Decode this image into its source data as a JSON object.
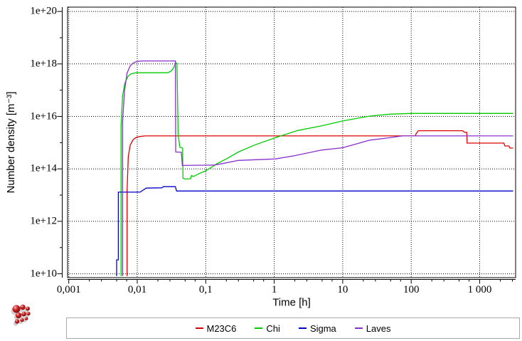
{
  "window": {
    "background": "#ffffff"
  },
  "chart_data": {
    "type": "line",
    "title": "",
    "xlabel": "Time [h]",
    "ylabel": "Number density [m⁻³]",
    "x_scale": "log",
    "y_scale": "log",
    "xlim": [
      0.001,
      3500
    ],
    "ylim": [
      10000000000.0,
      1e+20
    ],
    "grid": "dotted",
    "legend_position": "bottom",
    "x_ticks": {
      "values": [
        0.001,
        0.01,
        0.1,
        1,
        10,
        100,
        1000
      ],
      "labels": [
        "0,001",
        "0,01",
        "0,1",
        "1",
        "10",
        "100",
        "1 000"
      ]
    },
    "x_minor_tick_multipliers": [
      2,
      3,
      5,
      7
    ],
    "y_ticks": {
      "values": [
        10000000000.0,
        1000000000000.0,
        100000000000000.0,
        1e+16,
        1e+18,
        1e+20
      ],
      "labels": [
        "1e+10",
        "1e+12",
        "1e+14",
        "1e+16",
        "1e+18",
        "1e+20"
      ]
    },
    "y_minor_tick_values": [
      100000000000.0,
      10000000000000.0,
      1000000000000000.0,
      1e+17,
      1e+19
    ],
    "series": [
      {
        "name": "M23C6",
        "color": "#dd0000",
        "points": [
          [
            0.0071,
            8200000000.0
          ],
          [
            0.0071,
            15000000000000.0
          ],
          [
            0.0074,
            300000000000000.0
          ],
          [
            0.0079,
            800000000000000.0
          ],
          [
            0.0087,
            1300000000000000.0
          ],
          [
            0.0097,
            1600000000000000.0
          ],
          [
            0.011,
            1720000000000000.0
          ],
          [
            0.013,
            1800000000000000.0
          ],
          [
            115,
            1800000000000000.0
          ],
          [
            118,
            2200000000000000.0
          ],
          [
            127,
            2850000000000000.0
          ],
          [
            565,
            2850000000000000.0
          ],
          [
            600,
            2500000000000000.0
          ],
          [
            648,
            2450000000000000.0
          ],
          [
            655,
            960000000000000.0
          ],
          [
            2250,
            960000000000000.0
          ],
          [
            2330,
            750000000000000.0
          ],
          [
            2680,
            750000000000000.0
          ],
          [
            2760,
            620000000000000.0
          ],
          [
            3080,
            620000000000000.0
          ]
        ]
      },
      {
        "name": "Chi",
        "color": "#00cc00",
        "points": [
          [
            0.0058,
            8200000000.0
          ],
          [
            0.0058,
            4000000000000000.0
          ],
          [
            0.0061,
            6e+16
          ],
          [
            0.0066,
            1.9e+17
          ],
          [
            0.0073,
            3.3e+17
          ],
          [
            0.0081,
            4.2e+17
          ],
          [
            0.0095,
            4.6e+17
          ],
          [
            0.028,
            4.6e+17
          ],
          [
            0.032,
            5.6e+17
          ],
          [
            0.035,
            8.5e+17
          ],
          [
            0.0365,
            1.08e+18
          ],
          [
            0.038,
            1.08e+18
          ],
          [
            0.0395,
            2000000000000000.0
          ],
          [
            0.042,
            660000000000000.0
          ],
          [
            0.046,
            620000000000000.0
          ],
          [
            0.0465,
            44000000000000.0
          ],
          [
            0.05,
            41000000000000.0
          ],
          [
            0.06,
            42000000000000.0
          ],
          [
            0.062,
            56000000000000.0
          ],
          [
            0.066,
            51000000000000.0
          ],
          [
            0.08,
            66000000000000.0
          ],
          [
            0.1,
            84000000000000.0
          ],
          [
            0.15,
            165000000000000.0
          ],
          [
            0.2,
            240000000000000.0
          ],
          [
            0.3,
            440000000000000.0
          ],
          [
            0.53,
            830000000000000.0
          ],
          [
            1.05,
            1550000000000000.0
          ],
          [
            2.2,
            2900000000000000.0
          ],
          [
            5,
            4400000000000000.0
          ],
          [
            10,
            6700000000000000.0
          ],
          [
            25,
            1.03e+16
          ],
          [
            50,
            1.22e+16
          ],
          [
            100,
            1.3e+16
          ],
          [
            3080,
            1.3e+16
          ]
        ]
      },
      {
        "name": "Sigma",
        "color": "#0000cc",
        "points": [
          [
            0.005,
            8200000000.0
          ],
          [
            0.005,
            34000000000.0
          ],
          [
            0.0053,
            34000000000.0
          ],
          [
            0.0053,
            13000000000000.0
          ],
          [
            0.011,
            13000000000000.0
          ],
          [
            0.0135,
            18500000000000.0
          ],
          [
            0.023,
            19000000000000.0
          ],
          [
            0.024,
            21000000000000.0
          ],
          [
            0.036,
            21000000000000.0
          ],
          [
            0.0375,
            14300000000000.0
          ],
          [
            3080,
            14300000000000.0
          ]
        ]
      },
      {
        "name": "Laves",
        "color": "#8830cc",
        "points": [
          [
            0.0061,
            8200000000.0
          ],
          [
            0.0061,
            6000000000000000.0
          ],
          [
            0.0065,
            9e+16
          ],
          [
            0.0071,
            4.5e+17
          ],
          [
            0.0079,
            8.5e+17
          ],
          [
            0.0088,
            1.1e+18
          ],
          [
            0.01,
            1.25e+18
          ],
          [
            0.012,
            1.3e+18
          ],
          [
            0.036,
            1.3e+18
          ],
          [
            0.0365,
            440000000000000.0
          ],
          [
            0.044,
            430000000000000.0
          ],
          [
            0.0455,
            135000000000000.0
          ],
          [
            0.1,
            138000000000000.0
          ],
          [
            0.135,
            140000000000000.0
          ],
          [
            0.2,
            170000000000000.0
          ],
          [
            0.3,
            210000000000000.0
          ],
          [
            0.6,
            225000000000000.0
          ],
          [
            1.05,
            240000000000000.0
          ],
          [
            2,
            320000000000000.0
          ],
          [
            4.9,
            520000000000000.0
          ],
          [
            10,
            640000000000000.0
          ],
          [
            25,
            1250000000000000.0
          ],
          [
            45,
            1500000000000000.0
          ],
          [
            63,
            1700000000000000.0
          ],
          [
            75,
            1800000000000000.0
          ],
          [
            3080,
            1800000000000000.0
          ]
        ]
      }
    ]
  },
  "legend": {
    "items": [
      "M23C6",
      "Chi",
      "Sigma",
      "Laves"
    ]
  },
  "logo": {
    "name": "matcalc-spheres-logo"
  }
}
